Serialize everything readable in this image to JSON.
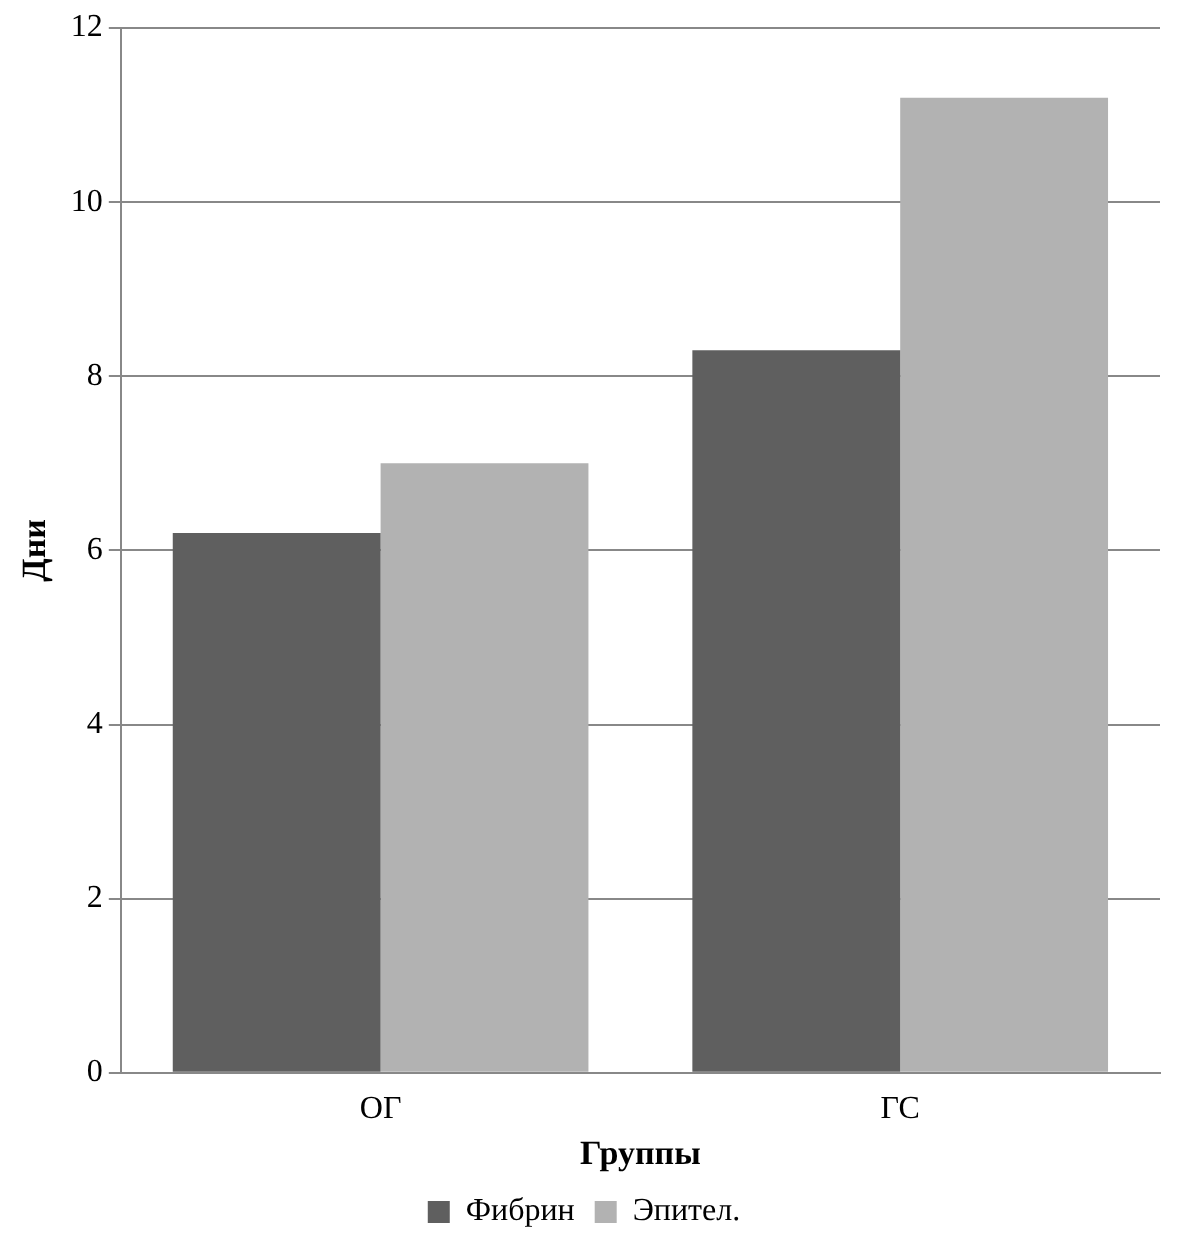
{
  "chart_data": {
    "type": "bar",
    "xlabel": "Группы",
    "ylabel": "Дни",
    "categories": [
      "ОГ",
      "ГС"
    ],
    "series": [
      {
        "name": "Фибрин",
        "color": "#5f5f5f",
        "values": [
          6.2,
          8.3
        ]
      },
      {
        "name": "Эпител.",
        "color": "#b2b2b2",
        "values": [
          7.0,
          11.2
        ]
      }
    ],
    "ylim": [
      0,
      12
    ],
    "yticks": [
      0,
      2,
      4,
      6,
      8,
      10,
      12
    ],
    "grid": "y",
    "legend": "bottom"
  }
}
